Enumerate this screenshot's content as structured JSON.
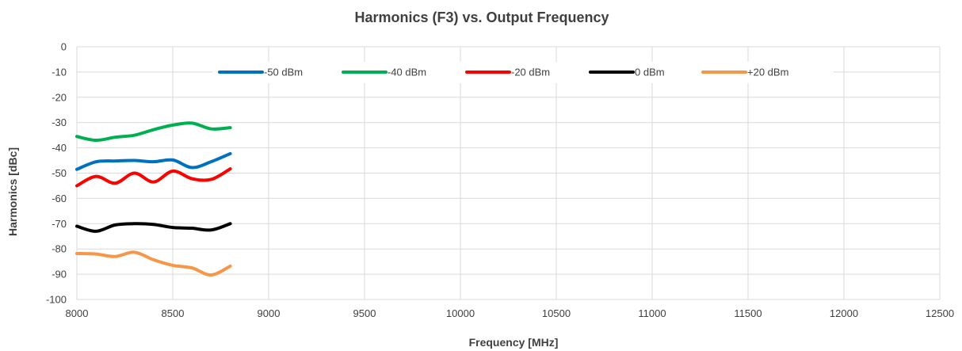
{
  "chart_data": {
    "type": "line",
    "title": "Harmonics (F3) vs. Output Frequency",
    "xlabel": "Frequency [MHz]",
    "ylabel": "Harmonics [dBc]",
    "xlim": [
      8000,
      12500
    ],
    "ylim": [
      -100,
      0
    ],
    "xticks": [
      8000,
      8500,
      9000,
      9500,
      10000,
      10500,
      11000,
      11500,
      12000,
      12500
    ],
    "yticks": [
      0,
      -10,
      -20,
      -30,
      -40,
      -50,
      -60,
      -70,
      -80,
      -90,
      -100
    ],
    "grid": true,
    "legend_position": "top-inside",
    "x": [
      8000,
      8100,
      8200,
      8300,
      8400,
      8500,
      8600,
      8700,
      8800
    ],
    "series": [
      {
        "name": "-50 dBm",
        "color": "#0070C0",
        "values": [
          -48.5,
          -45.5,
          -45.2,
          -45.0,
          -45.5,
          -44.8,
          -47.8,
          -45.5,
          -42.3
        ]
      },
      {
        "name": "-40 dBm",
        "color": "#00B050",
        "values": [
          -35.5,
          -37.0,
          -35.8,
          -35.0,
          -32.8,
          -31.0,
          -30.2,
          -32.5,
          -32.0
        ]
      },
      {
        "name": "-20 dBm",
        "color": "#FF0000",
        "values": [
          -55.0,
          -51.3,
          -54.0,
          -50.0,
          -53.5,
          -49.2,
          -52.2,
          -52.5,
          -48.3
        ]
      },
      {
        "name": "0 dBm",
        "color": "#000000",
        "values": [
          -71.0,
          -73.0,
          -70.5,
          -70.0,
          -70.3,
          -71.5,
          -71.8,
          -72.5,
          -70.0
        ]
      },
      {
        "name": "+20 dBm",
        "color": "#F79646",
        "values": [
          -81.8,
          -82.0,
          -83.0,
          -81.3,
          -84.3,
          -86.5,
          -87.5,
          -90.3,
          -86.8
        ]
      }
    ]
  }
}
